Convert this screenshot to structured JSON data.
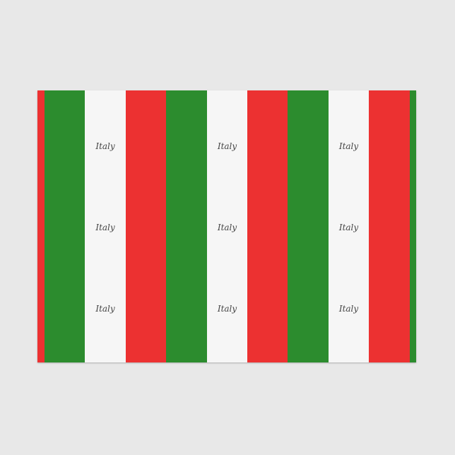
{
  "product": {
    "label_text": "Italy",
    "colors": {
      "red": "#ec3131",
      "green": "#2c8c2e",
      "white": "#f6f6f6",
      "background": "#e8e8e8"
    },
    "stripes": [
      "red",
      "green",
      "white",
      "red",
      "green",
      "white",
      "red",
      "green",
      "white",
      "red",
      "green"
    ]
  }
}
